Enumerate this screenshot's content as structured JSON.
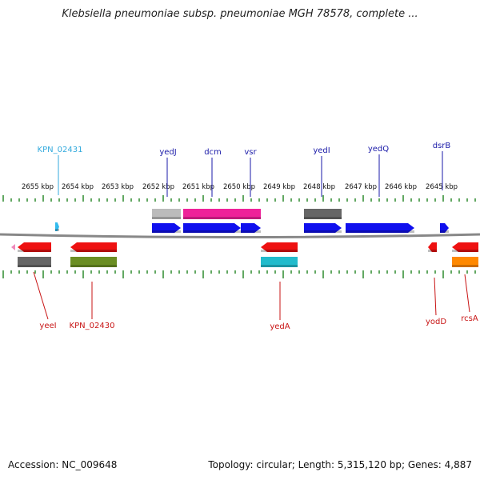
{
  "title": "Klebsiella pneumoniae subsp. pneumoniae MGH 78578, complete ...",
  "accession_label": "Accession: NC_009648",
  "topology_label": "Topology: circular; Length: 5,315,120 bp; Genes: 4,887",
  "colors": {
    "backbone": "#888888",
    "tick": "#2e8b2e",
    "forward_label": "#1a1aa8",
    "reverse_label": "#c81414",
    "highlight_label": "#33aadd"
  },
  "ruler": {
    "tick_labels": [
      "2655 kbp",
      "2654 kbp",
      "2653 kbp",
      "2652 kbp",
      "2651 kbp",
      "2650 kbp",
      "2649 kbp",
      "2648 kbp",
      "2647 kbp",
      "2646 kbp",
      "2645 kbp"
    ]
  },
  "forward_genes": [
    {
      "label": "KPN_02431",
      "color": "#33bbee",
      "label_color": "#33aadd"
    },
    {
      "label": "yedJ",
      "color": "#1010ee",
      "label_color": "#1a1aa8"
    },
    {
      "label": "dcm",
      "color": "#1010ee",
      "label_color": "#1a1aa8"
    },
    {
      "label": "vsr",
      "color": "#1010ee",
      "label_color": "#1a1aa8"
    },
    {
      "label": "yedI",
      "color": "#1010ee",
      "label_color": "#1a1aa8"
    },
    {
      "label": "yedQ",
      "color": "#1010ee",
      "label_color": "#1a1aa8"
    },
    {
      "label": "dsrB",
      "color": "#1010ee",
      "label_color": "#1a1aa8"
    }
  ],
  "forward_features": [
    {
      "color": "#bbbbbb"
    },
    {
      "color": "#ee2299"
    },
    {
      "color": "#666666"
    }
  ],
  "reverse_genes": [
    {
      "label": "yeeI",
      "color": "#ee1111"
    },
    {
      "label": "KPN_02430",
      "color": "#ee1111"
    },
    {
      "label": "yedA",
      "color": "#ee1111"
    },
    {
      "label": "yodD",
      "color": "#ee1111"
    },
    {
      "label": "rcsA",
      "color": "#ee1111"
    }
  ],
  "reverse_features": [
    {
      "color": "#666666"
    },
    {
      "color": "#6b8e23"
    },
    {
      "color": "#22bbcc"
    },
    {
      "color": "#ff8800"
    }
  ]
}
